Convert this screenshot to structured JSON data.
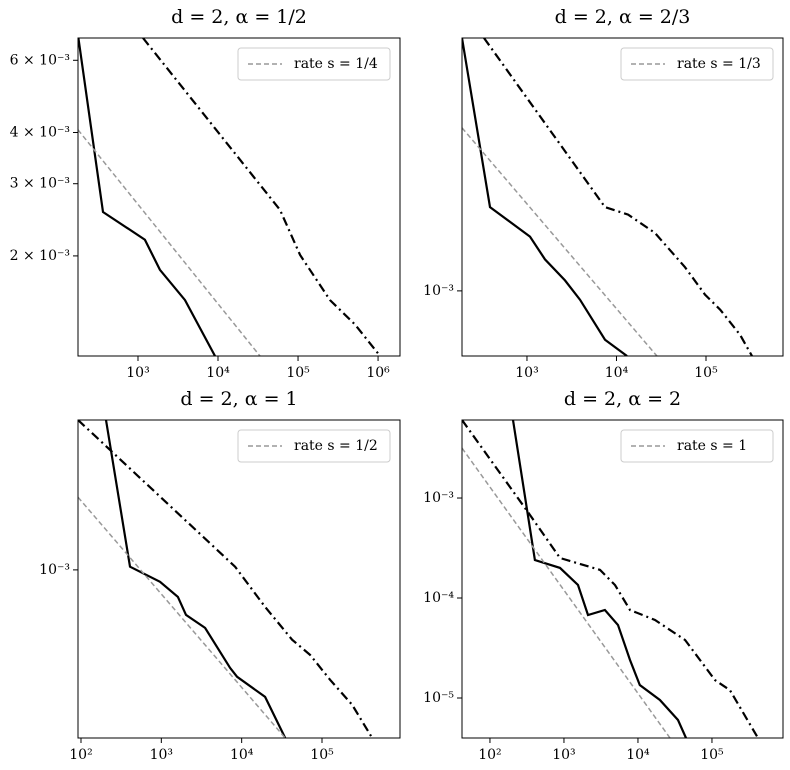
{
  "chart_data": [
    {
      "type": "line",
      "title": "d = 2, α = 1/2",
      "xlog": true,
      "ylog": true,
      "legend": "upper right",
      "xlim": [
        178,
        1880000
      ],
      "ylim": [
        0.00114,
        0.0068
      ],
      "xticks": [
        {
          "value": 1000,
          "label": "10³"
        },
        {
          "value": 10000,
          "label": "10⁴"
        },
        {
          "value": 100000,
          "label": "10⁵"
        },
        {
          "value": 1000000,
          "label": "10⁶"
        }
      ],
      "yticks": [
        {
          "value": 0.006,
          "label": "6 × 10⁻³"
        },
        {
          "value": 0.004,
          "label": "4 × 10⁻³"
        },
        {
          "value": 0.003,
          "label": "3 × 10⁻³"
        },
        {
          "value": 0.002,
          "label": "2 × 10⁻³"
        }
      ],
      "series": [
        {
          "color": "#000000",
          "dash": "solid",
          "x": [
            180,
            365,
            1220,
            1880,
            3870,
            9170
          ],
          "values": [
            0.0068,
            0.00256,
            0.00219,
            0.00185,
            0.00156,
            0.00114
          ]
        },
        {
          "color": "#000000",
          "dash": "dashdot",
          "x": [
            1155,
            59600,
            106000,
            251000,
            516000,
            1060000
          ],
          "values": [
            0.0068,
            0.00259,
            0.00201,
            0.00156,
            0.00136,
            0.00114
          ]
        },
        {
          "name": "rate s = 1/4",
          "color": "#999999",
          "dash": "dashed",
          "x": [
            178,
            33500
          ],
          "values": [
            0.00406,
            0.00114
          ]
        }
      ]
    },
    {
      "type": "line",
      "title": "d = 2, α = 2/3",
      "xlog": true,
      "ylog": true,
      "legend": "upper right",
      "xlim": [
        188,
        725000
      ],
      "ylim": [
        0.00062,
        0.0064
      ],
      "xticks": [
        {
          "value": 1000,
          "label": "10³"
        },
        {
          "value": 10000,
          "label": "10⁴"
        },
        {
          "value": 100000,
          "label": "10⁵"
        }
      ],
      "yticks": [
        {
          "value": 0.001,
          "label": "10⁻³"
        }
      ],
      "series": [
        {
          "color": "#000000",
          "dash": "solid",
          "x": [
            188,
            386,
            1080,
            1590,
            2660,
            3910,
            7440,
            13100
          ],
          "values": [
            0.0064,
            0.00185,
            0.00149,
            0.00126,
            0.00108,
            0.000937,
            0.000699,
            0.00062
          ]
        },
        {
          "color": "#000000",
          "dash": "dashdot",
          "x": [
            331,
            7440,
            13500,
            26900,
            58300,
            97600,
            144000,
            240000,
            327000
          ],
          "values": [
            0.0064,
            0.00185,
            0.00175,
            0.00153,
            0.00119,
            0.000973,
            0.000871,
            0.000725,
            0.00062
          ]
        },
        {
          "name": "rate s = 1/3",
          "color": "#999999",
          "dash": "dashed",
          "x": [
            188,
            28300
          ],
          "values": [
            0.00331,
            0.00062
          ]
        }
      ]
    },
    {
      "type": "line",
      "title": "d = 2, α = 1",
      "xlog": true,
      "ylog": true,
      "legend": "upper right",
      "xlim": [
        91.8,
        935000
      ],
      "ylim": [
        0.000126,
        0.00634
      ],
      "xticks": [
        {
          "value": 100,
          "label": "10²"
        },
        {
          "value": 1000,
          "label": "10³"
        },
        {
          "value": 10000,
          "label": "10⁴"
        },
        {
          "value": 100000,
          "label": "10⁵"
        }
      ],
      "yticks": [
        {
          "value": 0.001,
          "label": "10⁻³"
        }
      ],
      "series": [
        {
          "color": "#000000",
          "dash": "solid",
          "x": [
            205,
            408,
            964,
            1610,
            2030,
            3510,
            7180,
            8770,
            19600,
            34800
          ],
          "values": [
            0.00634,
            0.00104,
            0.000863,
            0.000717,
            0.000574,
            0.000489,
            0.000299,
            0.000268,
            0.000209,
            0.000126
          ]
        },
        {
          "color": "#000000",
          "dash": "dashdot",
          "x": [
            91.8,
            8280,
            19600,
            42500,
            71100,
            126000,
            237000,
            421000
          ],
          "values": [
            0.00634,
            0.00104,
            0.000634,
            0.000423,
            0.000351,
            0.000258,
            0.00019,
            0.000126
          ]
        },
        {
          "name": "rate s = 1/2",
          "color": "#999999",
          "dash": "dashed",
          "x": [
            91.8,
            34800
          ],
          "values": [
            0.00245,
            0.000126
          ]
        }
      ]
    },
    {
      "type": "line",
      "title": "d = 2, α = 2",
      "xlog": true,
      "ylog": true,
      "legend": "upper right",
      "xlim": [
        41.9,
        912000
      ],
      "ylim": [
        3.98e-06,
        0.00603
      ],
      "xticks": [
        {
          "value": 100,
          "label": "10²"
        },
        {
          "value": 1000,
          "label": "10³"
        },
        {
          "value": 10000,
          "label": "10⁴"
        },
        {
          "value": 100000,
          "label": "10⁵"
        }
      ],
      "yticks": [
        {
          "value": 0.001,
          "label": "10⁻³"
        },
        {
          "value": 0.0001,
          "label": "10⁻⁴"
        },
        {
          "value": 1e-05,
          "label": "10⁻⁵"
        }
      ],
      "series": [
        {
          "color": "#000000",
          "dash": "solid",
          "x": [
            205,
            405,
            883,
            1550,
            2110,
            3580,
            5370,
            7800,
            10600,
            19800,
            34800,
            44600
          ],
          "values": [
            0.00603,
            0.00024,
            0.0002,
            0.000135,
            6.76e-05,
            7.59e-05,
            5.37e-05,
            2.4e-05,
            1.35e-05,
            9.55e-06,
            6.03e-06,
            3.98e-06
          ]
        },
        {
          "color": "#000000",
          "dash": "dashdot",
          "x": [
            41.9,
            348,
            883,
            3070,
            4900,
            7800,
            17000,
            43300,
            68900,
            110000,
            175000,
            419000
          ],
          "values": [
            0.00603,
            0.000676,
            0.000251,
            0.000191,
            0.000135,
            7.59e-05,
            6.03e-05,
            3.8e-05,
            2.4e-05,
            1.51e-05,
            1.2e-05,
            3.98e-06
          ]
        },
        {
          "name": "rate s = 1",
          "color": "#999999",
          "dash": "dashed",
          "x": [
            41.9,
            27100
          ],
          "values": [
            0.00316,
            3.98e-06
          ]
        }
      ]
    }
  ]
}
